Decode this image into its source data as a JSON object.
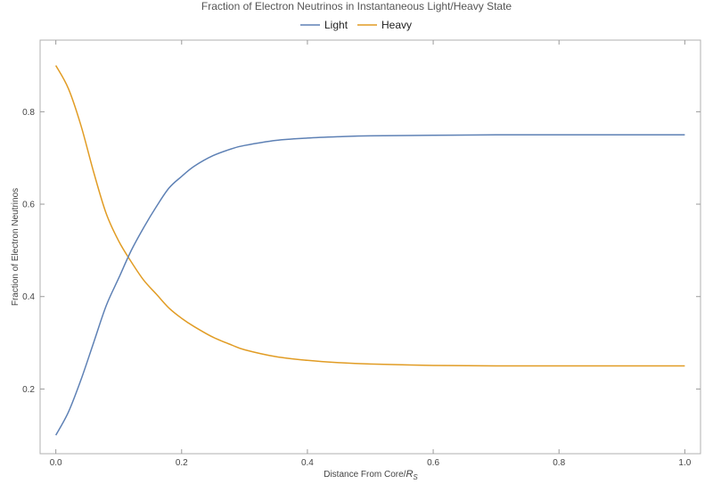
{
  "chart_data": {
    "type": "line",
    "title": "Fraction of Electron Neutrinos in Instantaneous Light/Heavy State",
    "xlabel_main": "Distance From Core/",
    "xlabel_var": "R",
    "xlabel_sub": "S",
    "ylabel": "Fraction of Electron Neutrinos",
    "xlim": [
      -0.025,
      1.025
    ],
    "ylim": [
      0.06,
      0.955
    ],
    "x_ticks": [
      0.0,
      0.2,
      0.4,
      0.6,
      0.8,
      1.0
    ],
    "x_tick_labels": [
      "0.0",
      "0.2",
      "0.4",
      "0.6",
      "0.8",
      "1.0"
    ],
    "y_ticks": [
      0.2,
      0.4,
      0.6,
      0.8
    ],
    "y_tick_labels": [
      "0.2",
      "0.4",
      "0.6",
      "0.8"
    ],
    "grid": false,
    "legend_position": "top-center",
    "x": [
      0.0,
      0.02,
      0.04,
      0.06,
      0.08,
      0.1,
      0.12,
      0.14,
      0.16,
      0.18,
      0.2,
      0.22,
      0.25,
      0.28,
      0.3,
      0.35,
      0.4,
      0.45,
      0.5,
      0.6,
      0.7,
      0.8,
      0.9,
      1.0
    ],
    "series": [
      {
        "name": "Light",
        "color": "#5e81b5",
        "values": [
          0.1,
          0.15,
          0.22,
          0.3,
          0.38,
          0.44,
          0.5,
          0.55,
          0.595,
          0.635,
          0.66,
          0.682,
          0.705,
          0.72,
          0.727,
          0.738,
          0.743,
          0.746,
          0.748,
          0.749,
          0.75,
          0.75,
          0.75,
          0.75
        ]
      },
      {
        "name": "Heavy",
        "color": "#e19c24",
        "values": [
          0.9,
          0.85,
          0.77,
          0.67,
          0.58,
          0.52,
          0.475,
          0.435,
          0.405,
          0.375,
          0.353,
          0.335,
          0.312,
          0.295,
          0.285,
          0.27,
          0.262,
          0.257,
          0.254,
          0.251,
          0.25,
          0.25,
          0.25,
          0.25
        ]
      }
    ]
  }
}
